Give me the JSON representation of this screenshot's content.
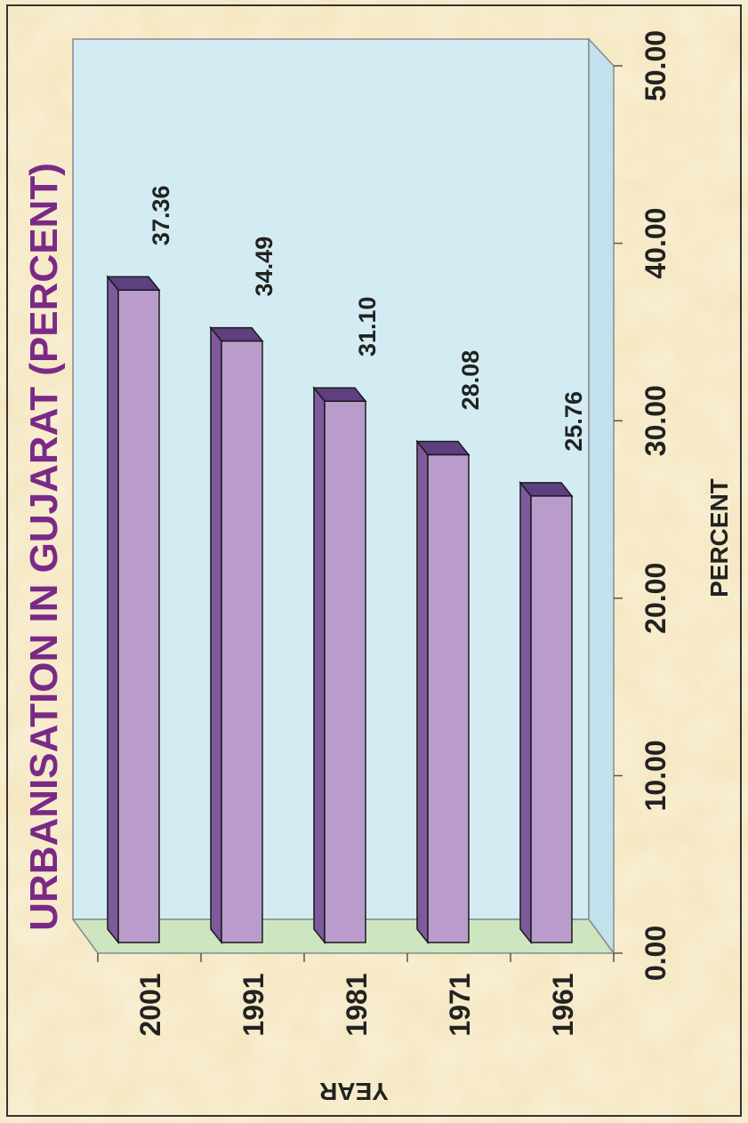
{
  "chart_data": {
    "type": "bar",
    "orientation": "rotated-90-ccw",
    "title": "URBANISATION IN GUJARAT (PERCENT)",
    "xlabel": "YEAR",
    "ylabel": "PERCENT",
    "categories": [
      "2001",
      "1991",
      "1981",
      "1971",
      "1961"
    ],
    "values": [
      37.36,
      34.49,
      31.1,
      28.08,
      25.76
    ],
    "data_labels": [
      "37.36",
      "34.49",
      "31.10",
      "28.08",
      "25.76"
    ],
    "ylim": [
      0,
      50
    ],
    "y_ticks": [
      "0.00",
      "10.00",
      "20.00",
      "30.00",
      "40.00",
      "50.00"
    ],
    "grid": false,
    "legend": "none",
    "colors": {
      "background": "#f6e9c6",
      "plot_wall": "#d3ecf3",
      "plot_floor": "#cde6c0",
      "bar_front": "#b99ccc",
      "bar_side": "#7d5a9c",
      "bar_top": "#5e3f80",
      "title": "#7a2a86",
      "text": "#222222"
    }
  }
}
